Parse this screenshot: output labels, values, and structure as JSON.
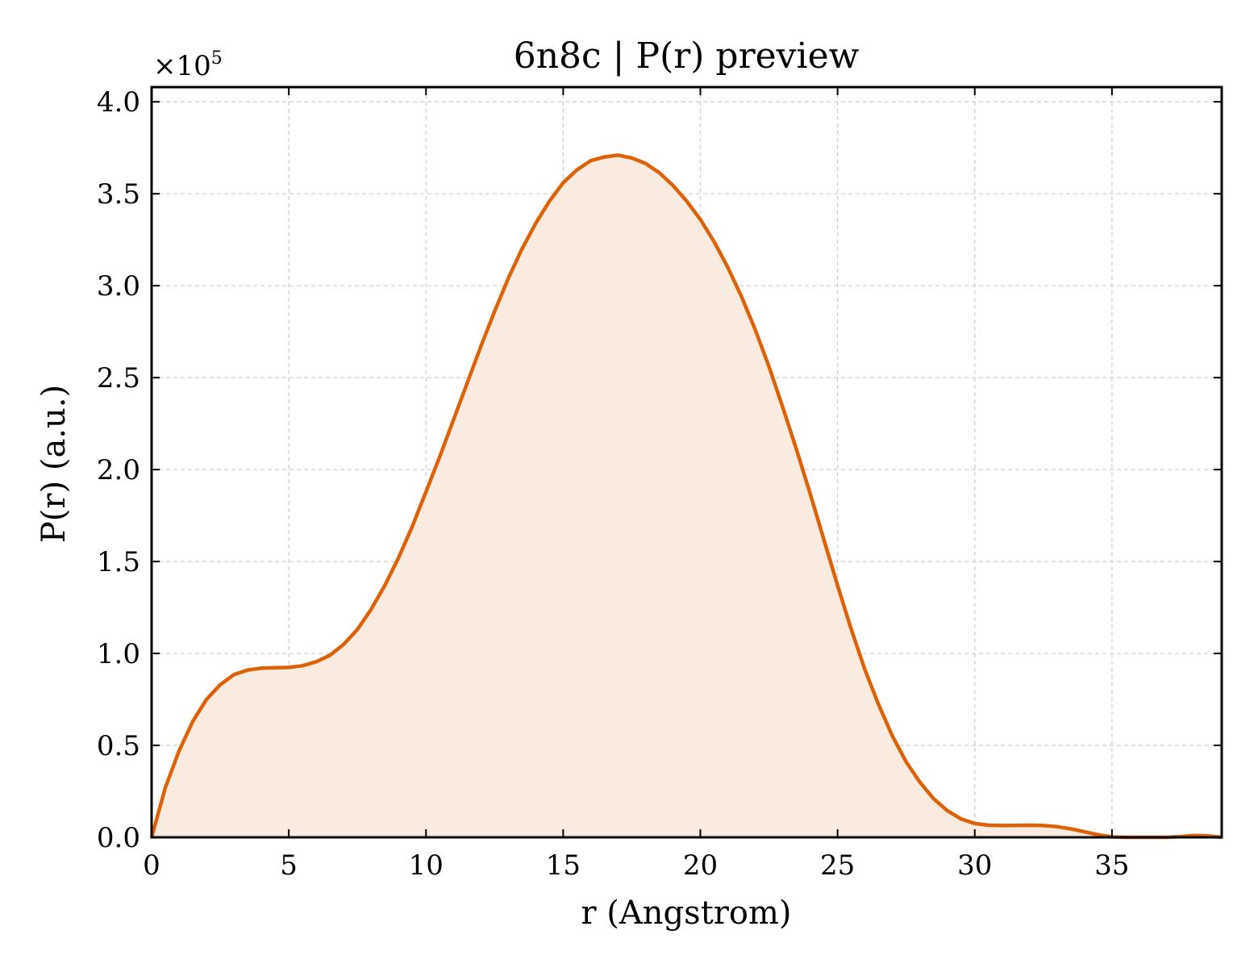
{
  "chart_data": {
    "type": "area",
    "title": "6n8c | P(r) preview",
    "xlabel": "r (Angstrom)",
    "ylabel": "P(r) (a.u.)",
    "y_multiplier": {
      "base": "×10",
      "exponent": "5"
    },
    "xlim": [
      0,
      39
    ],
    "ylim": [
      0,
      4.08
    ],
    "x_ticks": [
      0,
      5,
      10,
      15,
      20,
      25,
      30,
      35
    ],
    "y_ticks": [
      0.0,
      0.5,
      1.0,
      1.5,
      2.0,
      2.5,
      3.0,
      3.5,
      4.0
    ],
    "grid": true,
    "colors": {
      "line": "#dd6106",
      "fill": "#f9ebe0"
    },
    "series": [
      {
        "x": [
          0,
          0.5,
          1,
          1.5,
          2,
          2.5,
          3,
          3.5,
          4,
          4.5,
          5,
          5.5,
          6,
          6.5,
          7,
          7.5,
          8,
          8.5,
          9,
          9.5,
          10,
          10.5,
          11,
          11.5,
          12,
          12.5,
          13,
          13.5,
          14,
          14.5,
          15,
          15.5,
          16,
          16.5,
          17,
          17.5,
          18,
          18.5,
          19,
          19.5,
          20,
          20.5,
          21,
          21.5,
          22,
          22.5,
          23,
          23.5,
          24,
          24.5,
          25,
          25.5,
          26,
          26.5,
          27,
          27.5,
          28,
          28.5,
          29,
          29.5,
          30,
          30.5,
          31,
          31.5,
          32,
          32.5,
          33,
          33.5,
          34,
          34.5,
          35,
          35.5,
          36,
          36.5,
          37,
          37.5,
          38,
          38.5,
          39
        ],
        "values": [
          0,
          0.27,
          0.47,
          0.63,
          0.75,
          0.83,
          0.885,
          0.91,
          0.92,
          0.922,
          0.924,
          0.933,
          0.955,
          0.99,
          1.05,
          1.13,
          1.24,
          1.37,
          1.52,
          1.69,
          1.88,
          2.07,
          2.27,
          2.47,
          2.67,
          2.86,
          3.04,
          3.2,
          3.34,
          3.46,
          3.56,
          3.63,
          3.68,
          3.7,
          3.71,
          3.695,
          3.665,
          3.615,
          3.545,
          3.46,
          3.36,
          3.24,
          3.1,
          2.94,
          2.76,
          2.56,
          2.34,
          2.11,
          1.87,
          1.62,
          1.37,
          1.13,
          0.91,
          0.72,
          0.55,
          0.41,
          0.3,
          0.21,
          0.145,
          0.1,
          0.075,
          0.066,
          0.064,
          0.065,
          0.066,
          0.064,
          0.058,
          0.046,
          0.03,
          0.014,
          0.002,
          0.0,
          0.0,
          0.0,
          0.0,
          0.004,
          0.01,
          0.008,
          0.0
        ]
      }
    ]
  }
}
